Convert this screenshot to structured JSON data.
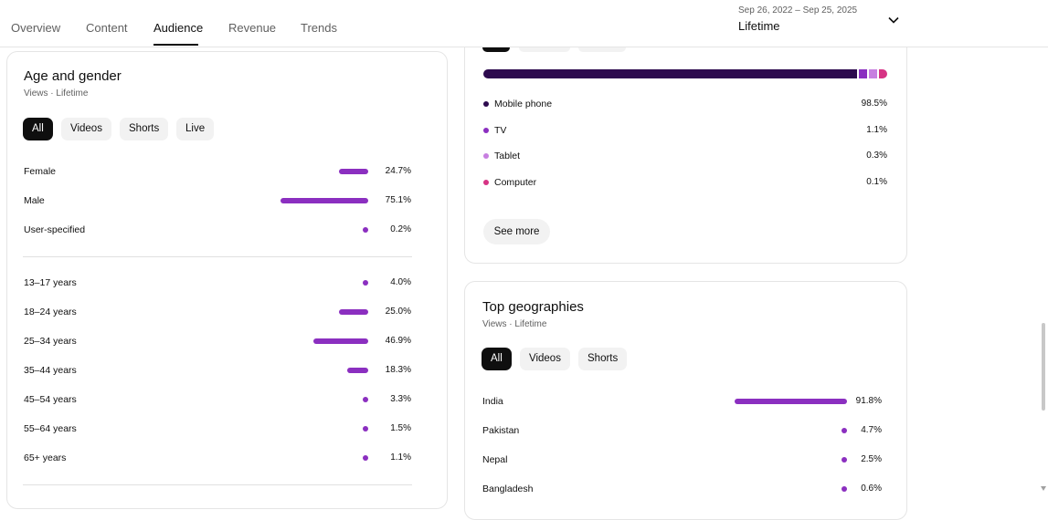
{
  "tabs": [
    {
      "label": "Overview"
    },
    {
      "label": "Content"
    },
    {
      "label": "Audience"
    },
    {
      "label": "Revenue"
    },
    {
      "label": "Trends"
    }
  ],
  "date_range": "Sep 26, 2022 – Sep 25, 2025",
  "period": "Lifetime",
  "age_gender": {
    "title": "Age and gender",
    "subtitle": "Views · Lifetime",
    "chips": [
      "All",
      "Videos",
      "Shorts",
      "Live"
    ],
    "gender": [
      {
        "label": "Female",
        "pct": "24.7%",
        "value": 24.7
      },
      {
        "label": "Male",
        "pct": "75.1%",
        "value": 75.1
      },
      {
        "label": "User-specified",
        "pct": "0.2%",
        "value": 0.2
      }
    ],
    "age": [
      {
        "label": "13–17 years",
        "pct": "4.0%",
        "value": 4.0
      },
      {
        "label": "18–24 years",
        "pct": "25.0%",
        "value": 25.0
      },
      {
        "label": "25–34 years",
        "pct": "46.9%",
        "value": 46.9
      },
      {
        "label": "35–44 years",
        "pct": "18.3%",
        "value": 18.3
      },
      {
        "label": "45–54 years",
        "pct": "3.3%",
        "value": 3.3
      },
      {
        "label": "55–64 years",
        "pct": "1.5%",
        "value": 1.5
      },
      {
        "label": "65+ years",
        "pct": "1.1%",
        "value": 1.1
      }
    ]
  },
  "devices": {
    "items": [
      {
        "label": "Mobile phone",
        "pct": "98.5%",
        "value": 98.5,
        "color": "#2d0a4e"
      },
      {
        "label": "TV",
        "pct": "1.1%",
        "value": 1.1,
        "color": "#8b2fc0"
      },
      {
        "label": "Tablet",
        "pct": "0.3%",
        "value": 0.3,
        "color": "#c77fe0"
      },
      {
        "label": "Computer",
        "pct": "0.1%",
        "value": 0.1,
        "color": "#d63384"
      }
    ],
    "see_more": "See more"
  },
  "geographies": {
    "title": "Top geographies",
    "subtitle": "Views · Lifetime",
    "chips": [
      "All",
      "Videos",
      "Shorts"
    ],
    "items": [
      {
        "label": "India",
        "pct": "91.8%",
        "value": 91.8
      },
      {
        "label": "Pakistan",
        "pct": "4.7%",
        "value": 4.7
      },
      {
        "label": "Nepal",
        "pct": "2.5%",
        "value": 2.5
      },
      {
        "label": "Bangladesh",
        "pct": "0.6%",
        "value": 0.6
      }
    ]
  },
  "colors": {
    "accent": "#8b2fc0",
    "chip_active": "#0f0f0f",
    "chip": "#f2f2f2"
  },
  "icons": {
    "dropdown": "chevron-down-icon"
  }
}
